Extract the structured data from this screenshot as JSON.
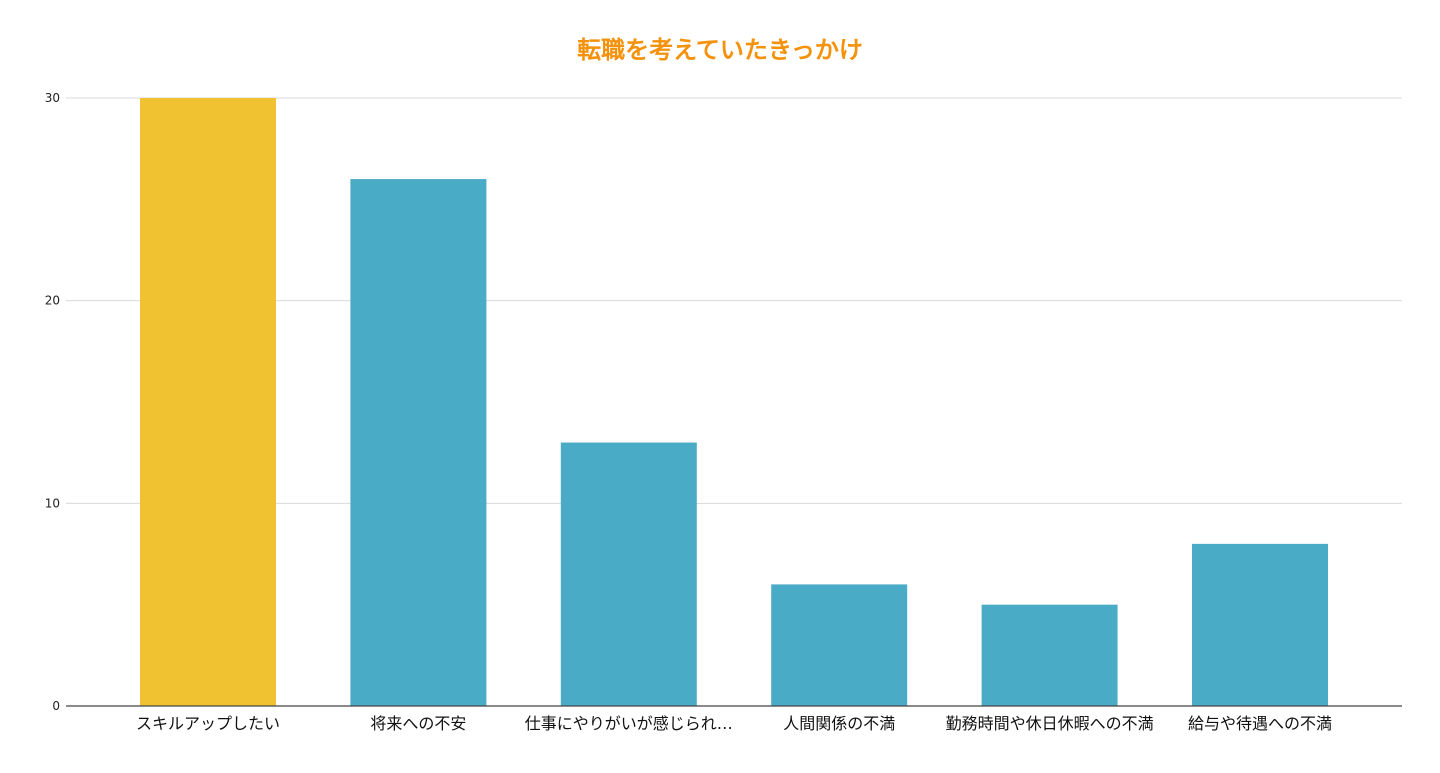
{
  "chart_data": {
    "type": "bar",
    "title": "転職を考えていたきっかけ",
    "xlabel": "",
    "ylabel": "",
    "categories": [
      "スキルアップしたい",
      "将来への不安",
      "仕事にやりがいが感じられ…",
      "人間関係の不満",
      "勤務時間や休日休暇への不満",
      "給与や待遇への不満"
    ],
    "values": [
      30,
      26,
      13,
      6,
      5,
      8
    ],
    "ylim": [
      0,
      30
    ],
    "yticks": [
      0,
      10,
      20,
      30
    ],
    "grid": true,
    "legend": "none",
    "colors": {
      "title": "#f4920c",
      "highlight_bar": "#f0c232",
      "bar": "#4aabc6",
      "grid": "#d9d9d9",
      "axis": "#444444",
      "tick_label": "#222222",
      "category_label": "#111111"
    },
    "highlight_index": 0
  }
}
